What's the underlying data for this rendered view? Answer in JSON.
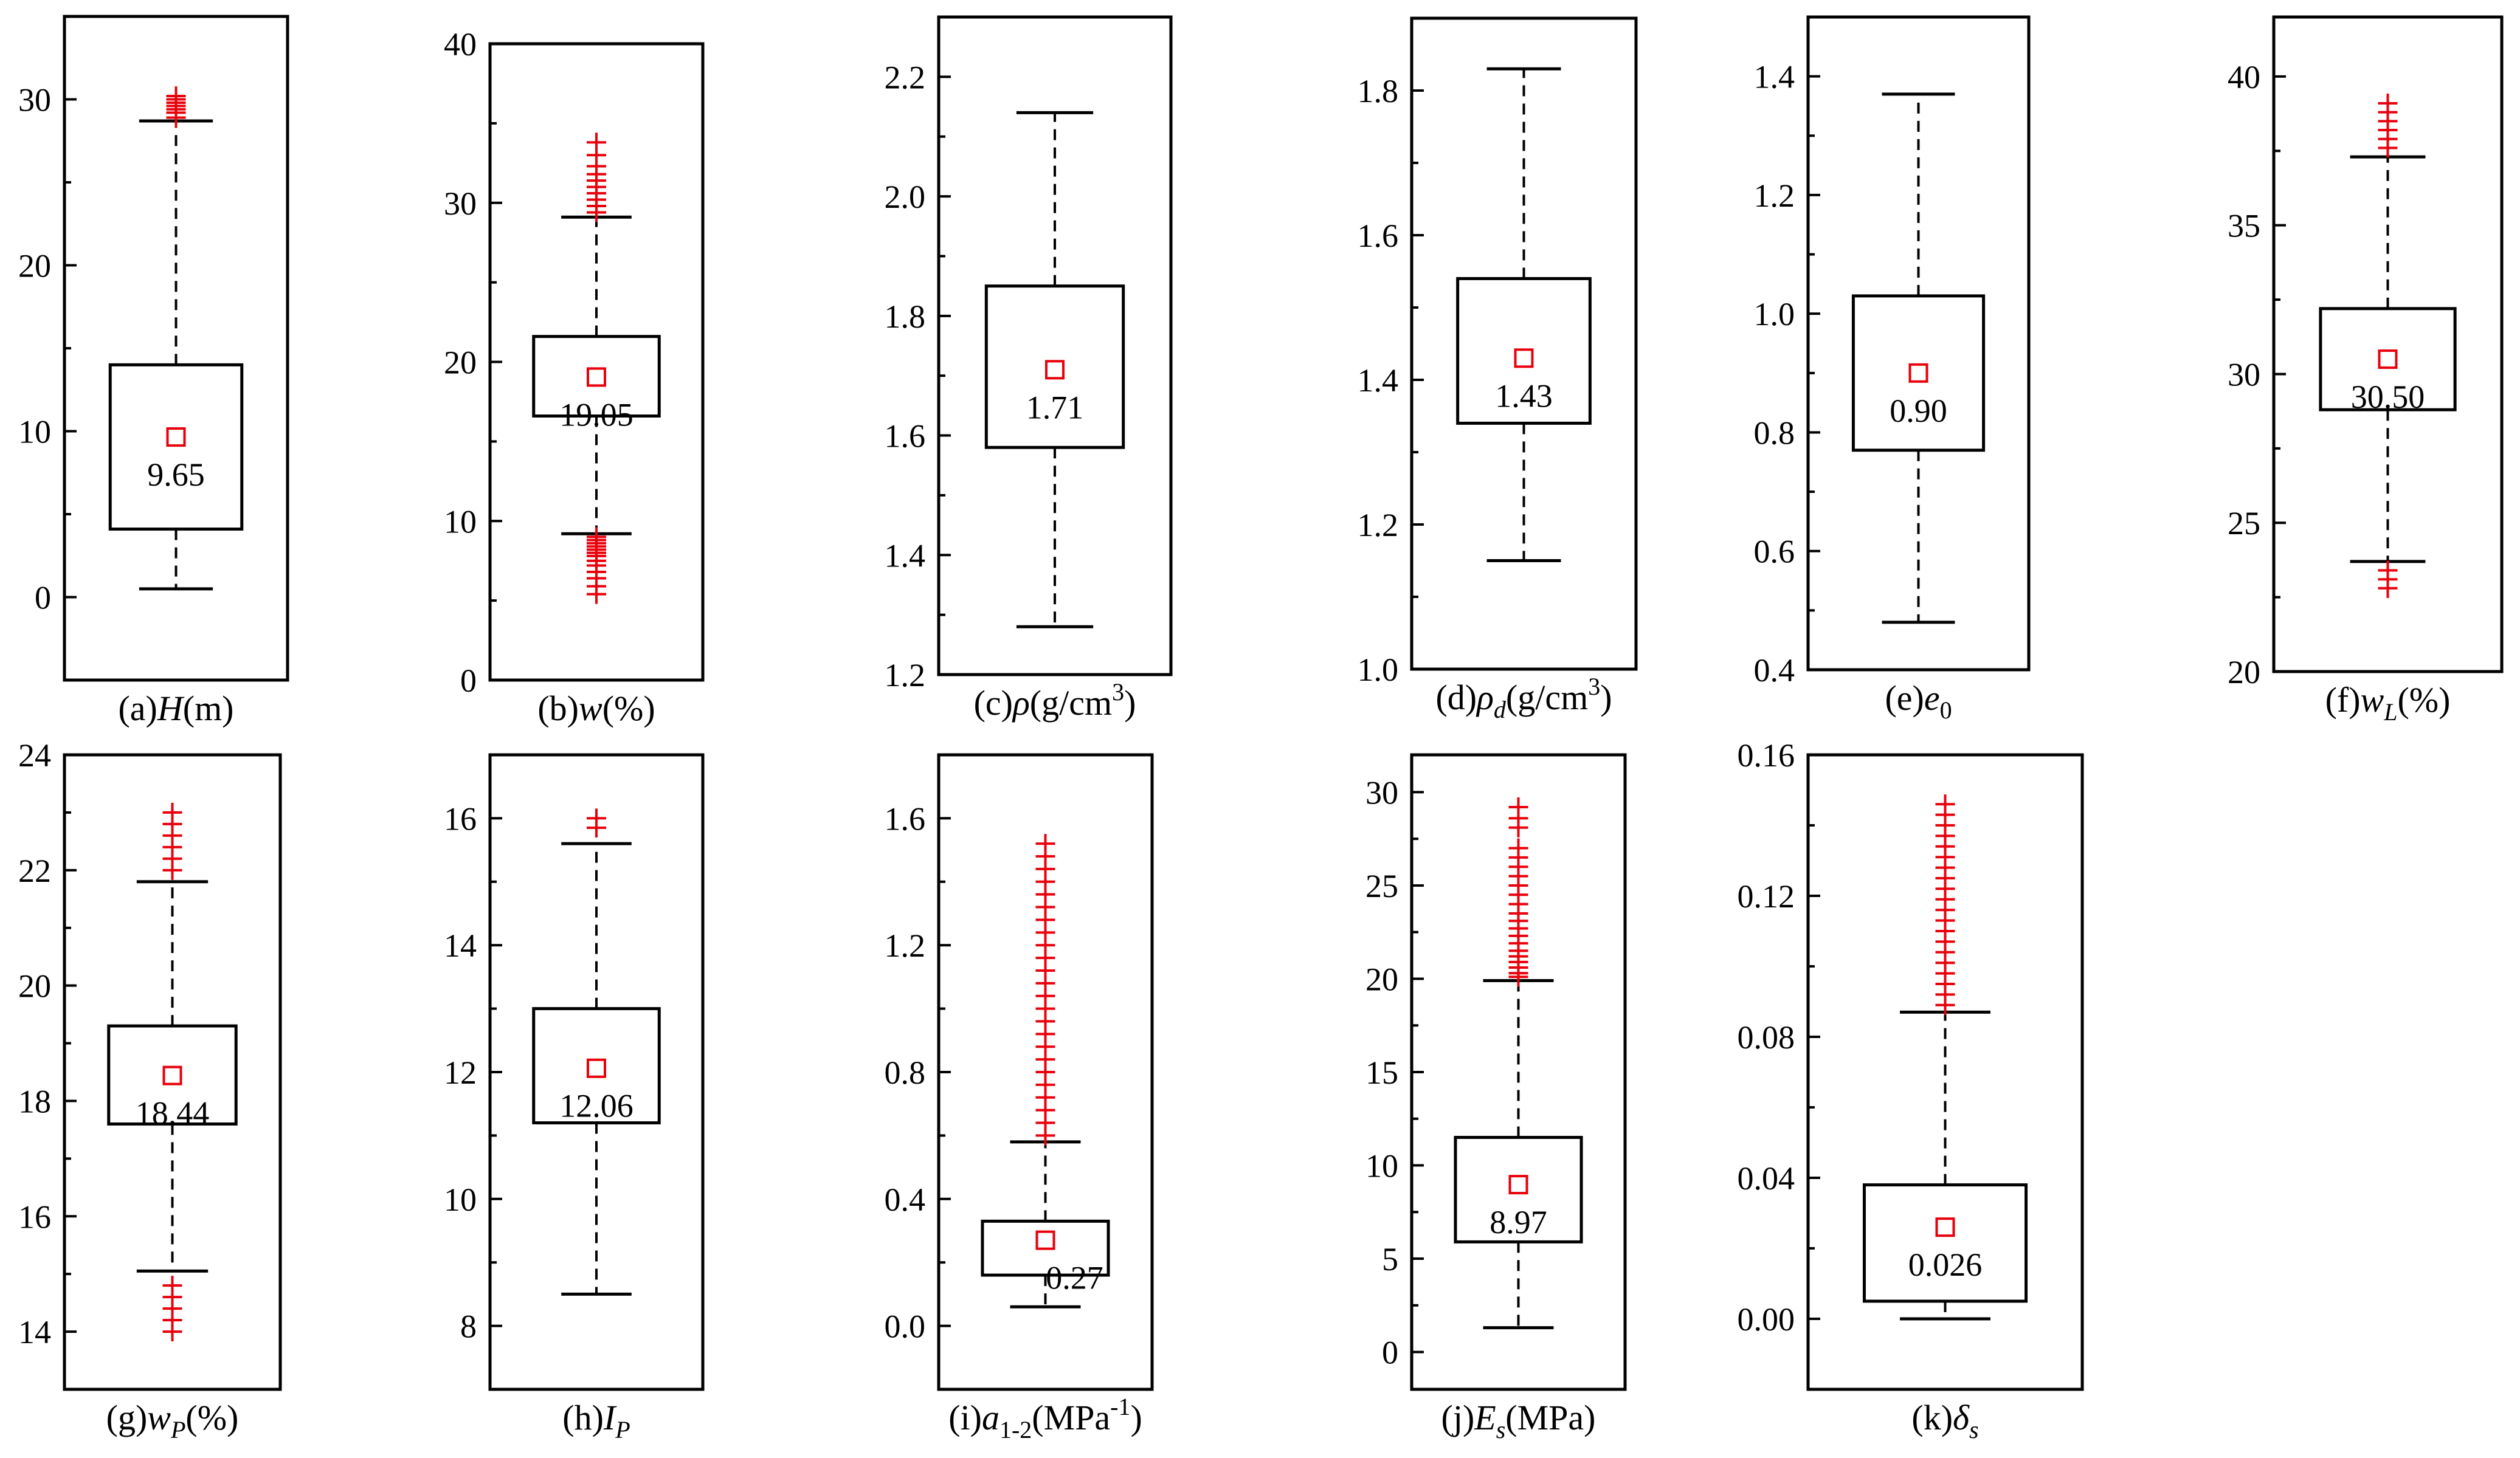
{
  "figure": {
    "mark_color": "#e8000b",
    "line_color": "#000000"
  },
  "chart_data": [
    {
      "id": "a",
      "type": "box",
      "title": "(a)H(m)",
      "lbl": [
        [
          "(a)",
          ""
        ],
        [
          "H",
          "i"
        ],
        [
          "(m)",
          ""
        ]
      ],
      "ylim": [
        -5,
        35
      ],
      "yticks": [
        0,
        10,
        20,
        30
      ],
      "decimals": 0,
      "whisker_low": 0.5,
      "q1": 4.1,
      "median": null,
      "q3": 14.0,
      "whisker_high": 28.7,
      "mean": 9.65,
      "mean_label": "9.65",
      "label_pos": "below",
      "outliers": [
        28.9,
        29.2,
        29.4,
        29.6,
        29.8,
        30.0,
        30.2
      ]
    },
    {
      "id": "b",
      "type": "box",
      "title": "(b)w(%)",
      "lbl": [
        [
          "(b)",
          ""
        ],
        [
          "w",
          "i"
        ],
        [
          "(%)",
          ""
        ]
      ],
      "ylim": [
        0,
        40
      ],
      "yticks": [
        0,
        10,
        20,
        30,
        40
      ],
      "decimals": 0,
      "whisker_low": 9.2,
      "q1": 16.6,
      "median": null,
      "q3": 21.6,
      "whisker_high": 29.1,
      "mean": 19.05,
      "mean_label": "19.05",
      "label_pos": "below",
      "outliers": [
        5.4,
        5.9,
        6.4,
        6.8,
        7.2,
        7.5,
        7.8,
        8.0,
        8.2,
        8.4,
        8.6,
        8.8,
        9.0,
        29.4,
        29.8,
        30.2,
        30.6,
        31.0,
        31.4,
        31.8,
        32.3,
        33.0,
        33.8
      ]
    },
    {
      "id": "c",
      "type": "box",
      "title": "(c)ρ(g/cm3)",
      "lbl": [
        [
          "(c)",
          ""
        ],
        [
          "ρ",
          "i"
        ],
        [
          "(g/cm",
          ""
        ],
        [
          "3",
          "sup"
        ],
        [
          ")",
          ""
        ]
      ],
      "ylim": [
        1.2,
        2.3
      ],
      "yticks": [
        1.2,
        1.4,
        1.6,
        1.8,
        2.0,
        2.2
      ],
      "decimals": 1,
      "whisker_low": 1.28,
      "q1": 1.58,
      "median": null,
      "q3": 1.85,
      "whisker_high": 2.14,
      "mean": 1.71,
      "mean_label": "1.71",
      "label_pos": "below",
      "outliers": []
    },
    {
      "id": "d",
      "type": "box",
      "title": "(d)ρd(g/cm3)",
      "lbl": [
        [
          "(d)",
          ""
        ],
        [
          "ρ",
          "i"
        ],
        [
          "d",
          "isub"
        ],
        [
          "(g/cm",
          ""
        ],
        [
          "3",
          "sup"
        ],
        [
          ")",
          ""
        ]
      ],
      "ylim": [
        1.0,
        1.9
      ],
      "yticks": [
        1.0,
        1.2,
        1.4,
        1.6,
        1.8
      ],
      "decimals": 1,
      "whisker_low": 1.15,
      "q1": 1.34,
      "median": null,
      "q3": 1.54,
      "whisker_high": 1.83,
      "mean": 1.43,
      "mean_label": "1.43",
      "label_pos": "below",
      "outliers": []
    },
    {
      "id": "e",
      "type": "box",
      "title": "(e)e0",
      "lbl": [
        [
          "(e)",
          ""
        ],
        [
          "e",
          "i"
        ],
        [
          "0",
          "sub"
        ]
      ],
      "ylim": [
        0.4,
        1.5
      ],
      "yticks": [
        0.4,
        0.6,
        0.8,
        1.0,
        1.2,
        1.4
      ],
      "decimals": 1,
      "whisker_low": 0.48,
      "q1": 0.77,
      "median": null,
      "q3": 1.03,
      "whisker_high": 1.37,
      "mean": 0.9,
      "mean_label": "0.90",
      "label_pos": "below",
      "outliers": []
    },
    {
      "id": "f",
      "type": "box",
      "title": "(f)wL(%)",
      "lbl": [
        [
          "(f)",
          ""
        ],
        [
          "w",
          "i"
        ],
        [
          "L",
          "isub"
        ],
        [
          "(%)",
          ""
        ]
      ],
      "ylim": [
        20,
        42
      ],
      "yticks": [
        20,
        25,
        30,
        35,
        40
      ],
      "decimals": 0,
      "whisker_low": 23.7,
      "q1": 28.8,
      "median": null,
      "q3": 32.2,
      "whisker_high": 37.3,
      "mean": 30.5,
      "mean_label": "30.50",
      "label_pos": "below",
      "outliers": [
        22.8,
        23.1,
        23.4,
        37.6,
        37.9,
        38.2,
        38.5,
        38.8,
        39.1
      ]
    },
    {
      "id": "g",
      "type": "box",
      "title": "(g)wP(%)",
      "lbl": [
        [
          "(g)",
          ""
        ],
        [
          "w",
          "i"
        ],
        [
          "P",
          "isub"
        ],
        [
          "(%)",
          ""
        ]
      ],
      "ylim": [
        13,
        24
      ],
      "yticks": [
        14,
        16,
        18,
        20,
        22,
        24
      ],
      "decimals": 0,
      "whisker_low": 15.05,
      "q1": 17.6,
      "median": null,
      "q3": 19.3,
      "whisker_high": 21.8,
      "mean": 18.44,
      "mean_label": "18.44",
      "label_pos": "below",
      "outliers": [
        14.0,
        14.2,
        14.4,
        14.6,
        14.8,
        22.0,
        22.2,
        22.4,
        22.6,
        22.8,
        23.0
      ]
    },
    {
      "id": "h",
      "type": "box",
      "title": "(h)IP",
      "lbl": [
        [
          "(h)",
          ""
        ],
        [
          "I",
          "i"
        ],
        [
          "P",
          "isub"
        ]
      ],
      "ylim": [
        7,
        17
      ],
      "yticks": [
        8,
        10,
        12,
        14,
        16
      ],
      "decimals": 0,
      "whisker_low": 8.5,
      "q1": 11.2,
      "median": null,
      "q3": 13.0,
      "whisker_high": 15.6,
      "mean": 12.06,
      "mean_label": "12.06",
      "label_pos": "below",
      "outliers": [
        15.85,
        16.0
      ]
    },
    {
      "id": "i",
      "type": "box",
      "title": "(i)a1-2(MPa-1)",
      "lbl": [
        [
          "(i)",
          ""
        ],
        [
          "a",
          "i"
        ],
        [
          "1-2",
          "sub"
        ],
        [
          "(MPa",
          ""
        ],
        [
          "-1",
          "sup"
        ],
        [
          ")",
          ""
        ]
      ],
      "ylim": [
        -0.2,
        1.8
      ],
      "yticks": [
        0.0,
        0.4,
        0.8,
        1.2,
        1.6
      ],
      "decimals": 1,
      "whisker_low": 0.06,
      "q1": 0.16,
      "median": null,
      "q3": 0.33,
      "whisker_high": 0.58,
      "mean": 0.27,
      "mean_label": "0.27",
      "label_pos": "below-right",
      "outliers": [
        0.6,
        0.64,
        0.68,
        0.72,
        0.76,
        0.8,
        0.84,
        0.88,
        0.92,
        0.96,
        1.0,
        1.04,
        1.08,
        1.12,
        1.16,
        1.2,
        1.24,
        1.28,
        1.32,
        1.36,
        1.4,
        1.44,
        1.48,
        1.52
      ]
    },
    {
      "id": "j",
      "type": "box",
      "title": "(j)Es(MPa)",
      "lbl": [
        [
          "(j)",
          ""
        ],
        [
          "E",
          "i"
        ],
        [
          "s",
          "isub"
        ],
        [
          "(MPa)",
          ""
        ]
      ],
      "ylim": [
        -2,
        32
      ],
      "yticks": [
        0,
        5,
        10,
        15,
        20,
        25,
        30
      ],
      "decimals": 0,
      "whisker_low": 1.3,
      "q1": 5.9,
      "median": null,
      "q3": 11.5,
      "whisker_high": 19.9,
      "mean": 8.97,
      "mean_label": "8.97",
      "label_pos": "below",
      "outliers": [
        20.1,
        20.3,
        20.6,
        20.9,
        21.2,
        21.5,
        21.9,
        22.3,
        22.7,
        23.1,
        23.5,
        24.0,
        24.5,
        25.0,
        25.5,
        26.0,
        26.5,
        27.0,
        28.1,
        28.6,
        29.2
      ]
    },
    {
      "id": "k",
      "type": "box",
      "title": "(k)δs",
      "lbl": [
        [
          "(k)",
          ""
        ],
        [
          "δ",
          "i"
        ],
        [
          "s",
          "isub"
        ]
      ],
      "ylim": [
        -0.02,
        0.16
      ],
      "yticks": [
        0.0,
        0.04,
        0.08,
        0.12,
        0.16
      ],
      "decimals": 2,
      "whisker_low": 0.0,
      "q1": 0.005,
      "median": null,
      "q3": 0.038,
      "whisker_high": 0.087,
      "mean": 0.026,
      "mean_label": "0.026",
      "label_pos": "below",
      "outliers": [
        0.089,
        0.092,
        0.095,
        0.098,
        0.101,
        0.104,
        0.107,
        0.11,
        0.113,
        0.116,
        0.119,
        0.122,
        0.125,
        0.128,
        0.131,
        0.134,
        0.137,
        0.14,
        0.143,
        0.146
      ]
    }
  ]
}
